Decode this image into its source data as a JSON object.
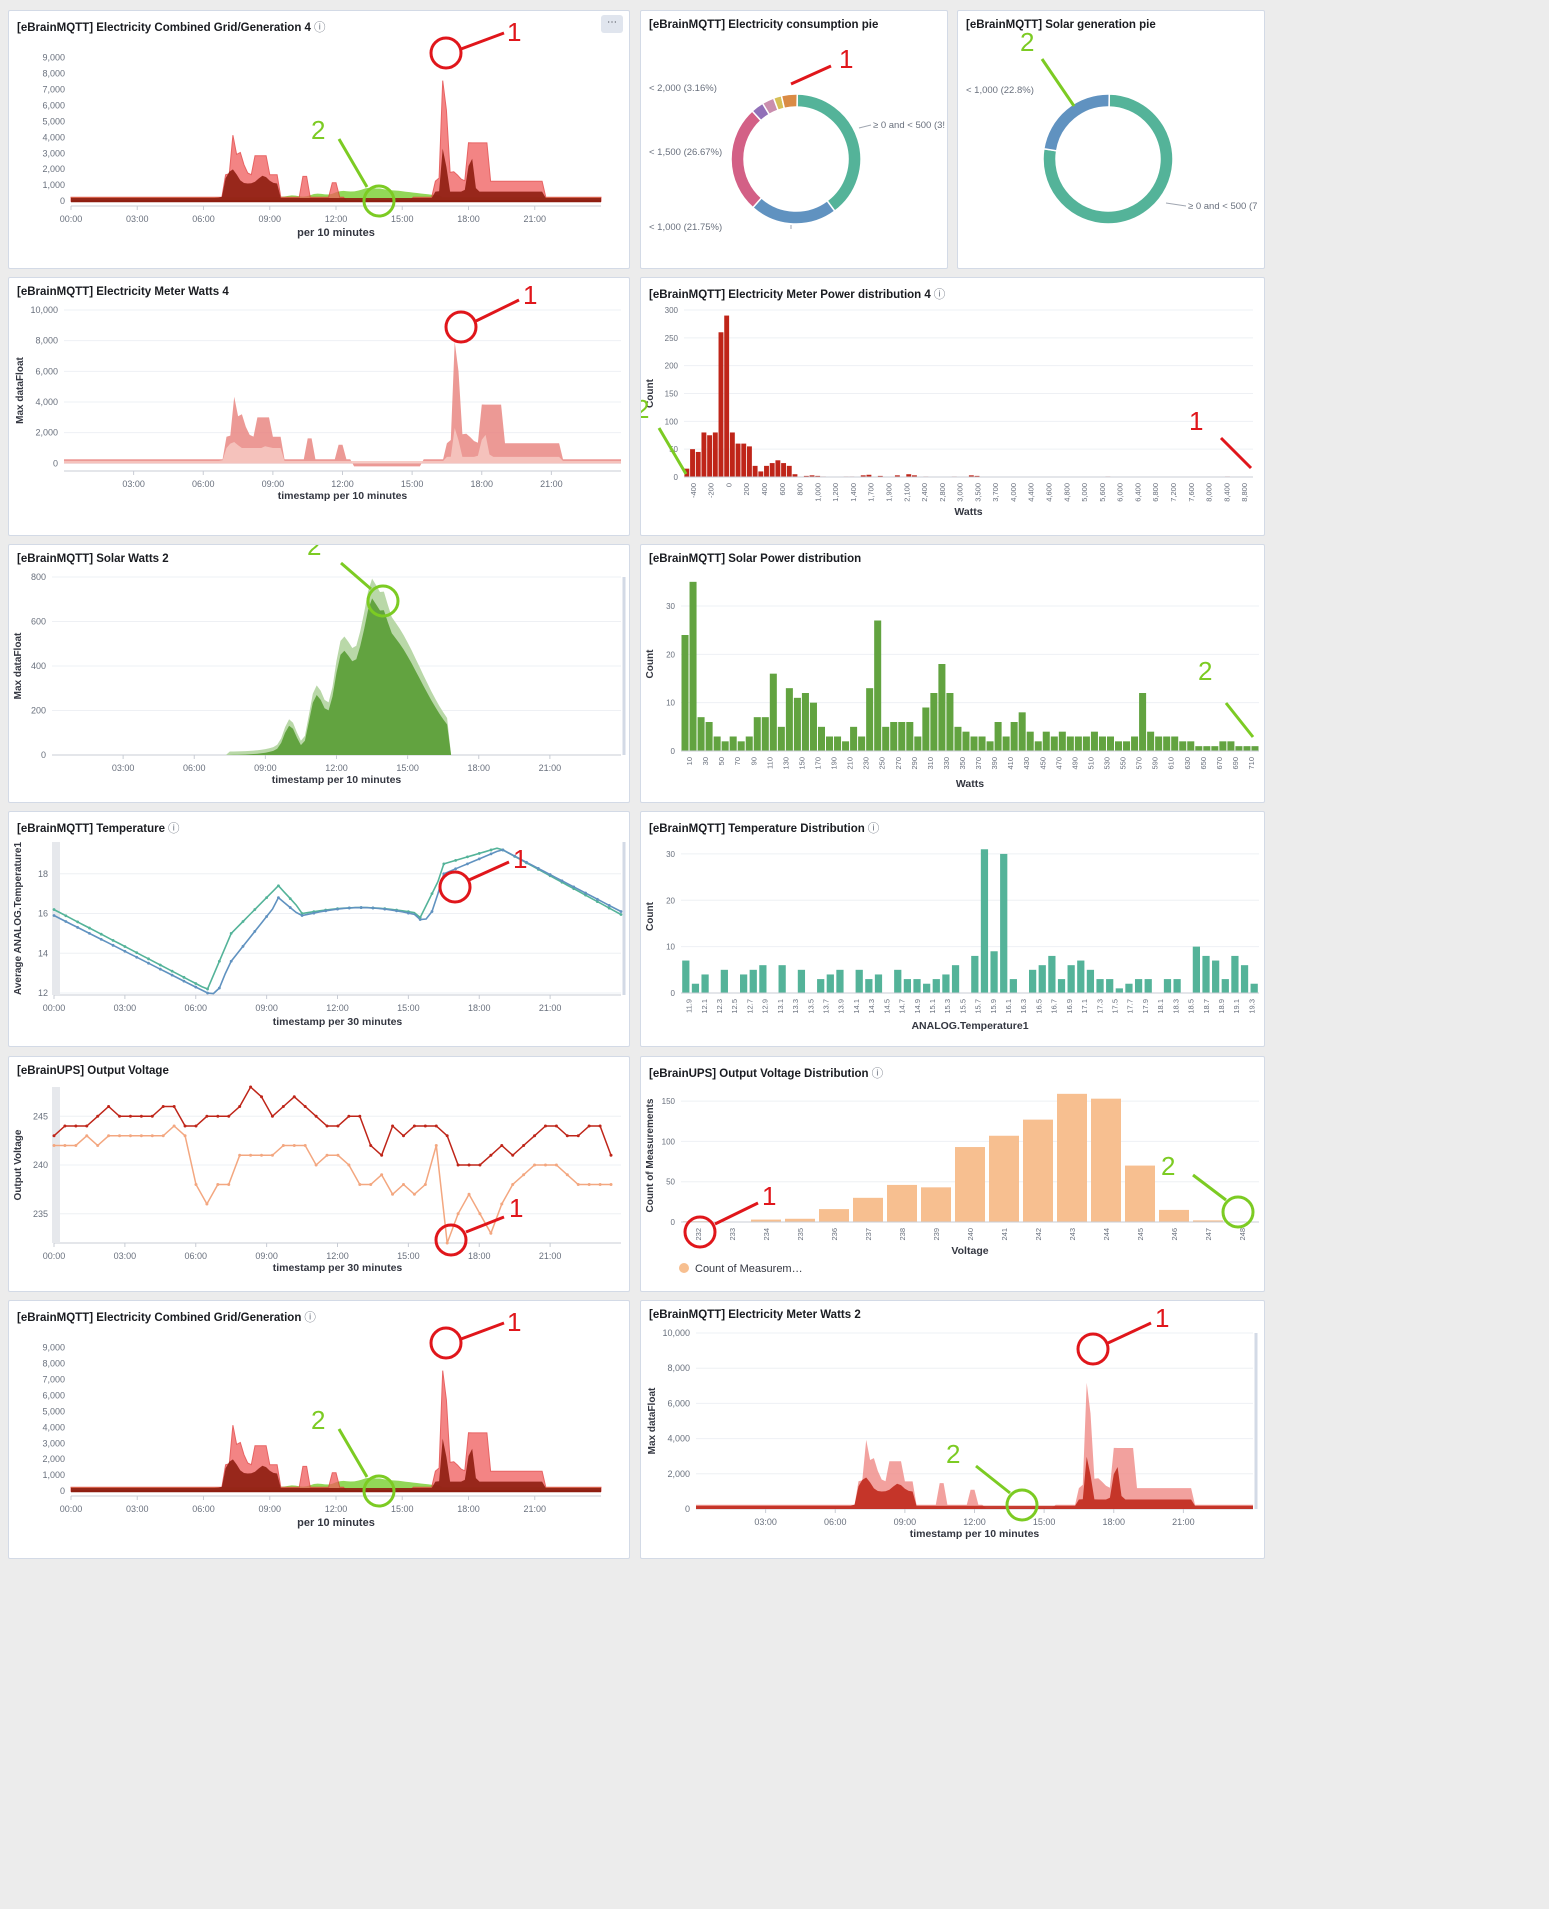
{
  "panels": [
    {
      "id": "p1",
      "title": "[eBrainMQTT] Electricity Combined Grid/Generation 4",
      "info": true,
      "menu": true
    },
    {
      "id": "p2",
      "title": "[eBrainMQTT] Electricity consumption pie",
      "info": false
    },
    {
      "id": "p3",
      "title": "[eBrainMQTT] Solar generation pie",
      "info": false
    },
    {
      "id": "p4",
      "title": "[eBrainMQTT] Electricity Meter Watts 4",
      "info": false
    },
    {
      "id": "p5",
      "title": "[eBrainMQTT] Electricity Meter Power distribution 4",
      "info": true
    },
    {
      "id": "p6",
      "title": "[eBrainMQTT] Solar Watts 2",
      "info": false
    },
    {
      "id": "p7",
      "title": "[eBrainMQTT] Solar Power distribution",
      "info": false
    },
    {
      "id": "p8",
      "title": "[eBrainMQTT] Temperature",
      "info": true
    },
    {
      "id": "p9",
      "title": "[eBrainMQTT] Temperature Distribution",
      "info": true
    },
    {
      "id": "p10",
      "title": "[eBrainUPS] Output Voltage",
      "info": false
    },
    {
      "id": "p11",
      "title": "[eBrainUPS] Output Voltage Distribution",
      "info": true
    },
    {
      "id": "p12",
      "title": "[eBrainMQTT] Electricity Combined Grid/Generation",
      "info": true
    },
    {
      "id": "p13",
      "title": "[eBrainMQTT] Electricity Meter Watts 2",
      "info": false
    }
  ],
  "info_glyph": "ⓘ",
  "menu_glyph": "⋯",
  "chart_data": [
    {
      "panel": "p1",
      "type": "area",
      "xlabel": "per 10 minutes",
      "ylabel": "",
      "xticks": [
        "00:00",
        "03:00",
        "06:00",
        "09:00",
        "12:00",
        "15:00",
        "18:00",
        "21:00"
      ],
      "yticks": [
        "0",
        "1,000",
        "2,000",
        "3,000",
        "4,000",
        "5,000",
        "6,000",
        "7,000",
        "8,000",
        "9,000"
      ],
      "ylim": [
        -300,
        9400
      ]
    },
    {
      "panel": "p2",
      "type": "pie",
      "labels": [
        "< 2,000 (3.16%)",
        "≥ 0 and < 500 (3!",
        "< 1,500 (26.67%)",
        "< 1,000 (21.75%)"
      ],
      "slices": [
        {
          "label": "≥ 0 and < 500",
          "value": 39.5
        },
        {
          "label": "< 1,000",
          "value": 21.75
        },
        {
          "label": "< 1,500",
          "value": 26.67
        },
        {
          "label": "< 2,000",
          "value": 3.16
        },
        {
          "label": "other",
          "value": 8.92
        }
      ]
    },
    {
      "panel": "p3",
      "type": "pie",
      "labels": [
        "< 1,000 (22.8%)",
        "≥ 0 and < 500 (7"
      ],
      "slices": [
        {
          "label": "≥ 0 and < 500",
          "value": 77.2
        },
        {
          "label": "< 1,000",
          "value": 22.8
        }
      ]
    },
    {
      "panel": "p4",
      "type": "area",
      "xlabel": "timestamp per 10 minutes",
      "ylabel": "Max dataFloat",
      "xticks": [
        "03:00",
        "06:00",
        "09:00",
        "12:00",
        "15:00",
        "18:00",
        "21:00"
      ],
      "yticks": [
        "0",
        "2,000",
        "4,000",
        "6,000",
        "8,000",
        "10,000"
      ],
      "ylim": [
        -500,
        10000
      ]
    },
    {
      "panel": "p5",
      "type": "bar",
      "xlabel": "Watts",
      "ylabel": "Count",
      "xticks": [
        "-400",
        "-200",
        "0",
        "200",
        "400",
        "600",
        "800",
        "1,000",
        "1,200",
        "1,400",
        "1,700",
        "1,900",
        "2,100",
        "2,400",
        "2,800",
        "3,000",
        "3,500",
        "3,700",
        "4,000",
        "4,400",
        "4,600",
        "4,800",
        "5,000",
        "5,600",
        "6,000",
        "6,400",
        "6,800",
        "7,200",
        "7,600",
        "8,000",
        "8,400",
        "8,800"
      ],
      "yticks": [
        "0",
        "50",
        "100",
        "150",
        "200",
        "250",
        "300"
      ],
      "ylim": [
        0,
        300
      ],
      "values": [
        15,
        50,
        45,
        80,
        75,
        80,
        260,
        290,
        80,
        60,
        60,
        55,
        20,
        10,
        20,
        25,
        30,
        25,
        20,
        5,
        0,
        2,
        3,
        2,
        1,
        0,
        0,
        0,
        1,
        1,
        0,
        3,
        4,
        0,
        2,
        0,
        0,
        3,
        0,
        5,
        3,
        0,
        1,
        0,
        0,
        0,
        0,
        1,
        0,
        0,
        3,
        2,
        0,
        0,
        0,
        0,
        0,
        0,
        0,
        0,
        0,
        0,
        0,
        0,
        0,
        0,
        0,
        0,
        0,
        0,
        0,
        0,
        0,
        0,
        1,
        0,
        0,
        0,
        0,
        0,
        0,
        0,
        0,
        0,
        0,
        0,
        0,
        0,
        0,
        0,
        0,
        0,
        0,
        0,
        0,
        1,
        0,
        0,
        0,
        0
      ]
    },
    {
      "panel": "p6",
      "type": "area",
      "xlabel": "timestamp per 10 minutes",
      "ylabel": "Max dataFloat",
      "xticks": [
        "03:00",
        "06:00",
        "09:00",
        "12:00",
        "15:00",
        "18:00",
        "21:00"
      ],
      "yticks": [
        "0",
        "200",
        "400",
        "600",
        "800"
      ],
      "ylim": [
        0,
        800
      ]
    },
    {
      "panel": "p7",
      "type": "bar",
      "xlabel": "Watts",
      "ylabel": "Count",
      "xticks": [
        "10",
        "30",
        "50",
        "70",
        "90",
        "110",
        "130",
        "150",
        "170",
        "190",
        "210",
        "230",
        "250",
        "270",
        "290",
        "310",
        "330",
        "350",
        "370",
        "390",
        "410",
        "430",
        "450",
        "470",
        "490",
        "510",
        "530",
        "550",
        "570",
        "590",
        "610",
        "630",
        "650",
        "670",
        "690",
        "710"
      ],
      "yticks": [
        "0",
        "10",
        "20",
        "30"
      ],
      "ylim": [
        0,
        36
      ],
      "values": [
        24,
        35,
        7,
        6,
        3,
        2,
        3,
        2,
        3,
        7,
        7,
        16,
        5,
        13,
        11,
        12,
        10,
        5,
        3,
        3,
        2,
        5,
        3,
        13,
        27,
        5,
        6,
        6,
        6,
        3,
        9,
        12,
        18,
        12,
        5,
        4,
        3,
        3,
        2,
        6,
        3,
        6,
        8,
        4,
        2,
        4,
        3,
        4,
        3,
        3,
        3,
        4,
        3,
        3,
        2,
        2,
        3,
        12,
        4,
        3,
        3,
        3,
        2,
        2,
        1,
        1,
        1,
        2,
        2,
        1,
        1,
        1
      ]
    },
    {
      "panel": "p8",
      "type": "line",
      "xlabel": "timestamp per 30 minutes",
      "ylabel": "Average ANALOG.Temperature1",
      "xticks": [
        "00:00",
        "03:00",
        "06:00",
        "09:00",
        "12:00",
        "15:00",
        "18:00",
        "21:00"
      ],
      "yticks": [
        "12",
        "14",
        "16",
        "18"
      ],
      "ylim": [
        11.9,
        19.6
      ]
    },
    {
      "panel": "p9",
      "type": "bar",
      "xlabel": "ANALOG.Temperature1",
      "ylabel": "Count",
      "xticks": [
        "11.9",
        "12.1",
        "12.3",
        "12.5",
        "12.7",
        "12.9",
        "13.1",
        "13.3",
        "13.5",
        "13.7",
        "13.9",
        "14.1",
        "14.3",
        "14.5",
        "14.7",
        "14.9",
        "15.1",
        "15.3",
        "15.5",
        "15.7",
        "15.9",
        "16.1",
        "16.3",
        "16.5",
        "16.7",
        "16.9",
        "17.1",
        "17.3",
        "17.5",
        "17.7",
        "17.9",
        "18.1",
        "18.3",
        "18.5",
        "18.7",
        "18.9",
        "19.1",
        "19.3"
      ],
      "yticks": [
        "0",
        "10",
        "20",
        "30"
      ],
      "ylim": [
        0,
        33
      ],
      "values": [
        7,
        2,
        4,
        0,
        5,
        0,
        4,
        5,
        6,
        0,
        6,
        0,
        5,
        0,
        3,
        4,
        5,
        0,
        5,
        3,
        4,
        0,
        5,
        3,
        3,
        2,
        3,
        4,
        6,
        0,
        8,
        31,
        9,
        30,
        3,
        0,
        5,
        6,
        8,
        3,
        6,
        7,
        5,
        3,
        3,
        1,
        2,
        3,
        3,
        0,
        3,
        3,
        0,
        10,
        8,
        7,
        3,
        8,
        6,
        2
      ]
    },
    {
      "panel": "p10",
      "type": "line",
      "xlabel": "timestamp per 30 minutes",
      "ylabel": "Output Voltage",
      "xticks": [
        "00:00",
        "03:00",
        "06:00",
        "09:00",
        "12:00",
        "15:00",
        "18:00",
        "21:00"
      ],
      "yticks": [
        "235",
        "240",
        "245"
      ],
      "ylim": [
        232,
        248
      ]
    },
    {
      "panel": "p11",
      "type": "bar",
      "xlabel": "Voltage",
      "ylabel": "Count of Measurements",
      "xticks": [
        "232",
        "233",
        "234",
        "235",
        "236",
        "237",
        "238",
        "239",
        "240",
        "241",
        "242",
        "243",
        "244",
        "245",
        "246",
        "247",
        "248"
      ],
      "values": [
        1,
        0,
        3,
        4,
        16,
        30,
        46,
        43,
        93,
        107,
        127,
        159,
        153,
        70,
        15,
        2,
        0
      ],
      "yticks": [
        "0",
        "50",
        "100",
        "150"
      ],
      "ylim": [
        0,
        165
      ],
      "legend": "Count of Measurem…"
    },
    {
      "panel": "p12",
      "type": "area",
      "xlabel": "per 10 minutes",
      "ylabel": "",
      "xticks": [
        "00:00",
        "03:00",
        "06:00",
        "09:00",
        "12:00",
        "15:00",
        "18:00",
        "21:00"
      ],
      "yticks": [
        "0",
        "1,000",
        "2,000",
        "3,000",
        "4,000",
        "5,000",
        "6,000",
        "7,000",
        "8,000",
        "9,000"
      ],
      "ylim": [
        -300,
        9400
      ]
    },
    {
      "panel": "p13",
      "type": "area",
      "xlabel": "timestamp per 10 minutes",
      "ylabel": "Max dataFloat",
      "xticks": [
        "03:00",
        "06:00",
        "09:00",
        "12:00",
        "15:00",
        "18:00",
        "21:00"
      ],
      "yticks": [
        "0",
        "2,000",
        "4,000",
        "6,000",
        "8,000",
        "10,000"
      ],
      "ylim": [
        0,
        10000
      ]
    }
  ],
  "annotations": {
    "one": "1",
    "two": "2"
  },
  "colors": {
    "red_mark": "#e0161b",
    "green_mark": "#7ccb23",
    "grid_red": "#f05b5b",
    "grid_dark": "#8e1d10",
    "solar_green": "#62a340",
    "teal": "#54b399",
    "blue": "#6092c0",
    "orange": "#f7bf90",
    "darkred": "#bf2519"
  }
}
